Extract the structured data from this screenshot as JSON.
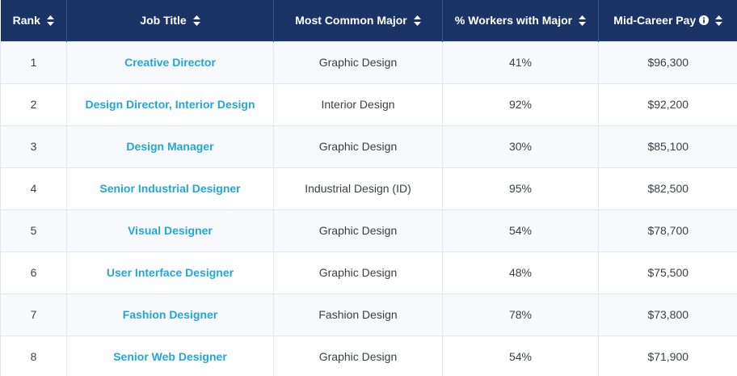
{
  "table": {
    "headers": {
      "rank": "Rank",
      "job_title": "Job Title",
      "major": "Most Common Major",
      "pct": "% Workers with Major",
      "pay": "Mid-Career Pay"
    },
    "icons": {
      "sort": "sort-icon",
      "info": "info-icon"
    },
    "colors": {
      "header_bg": "#1b3466",
      "link": "#23a6d5",
      "text": "#3a3f47"
    },
    "rows": [
      {
        "rank": "1",
        "title": "Creative Director",
        "major": "Graphic Design",
        "pct": "41%",
        "pay": "$96,300"
      },
      {
        "rank": "2",
        "title": "Design Director, Interior Design",
        "major": "Interior Design",
        "pct": "92%",
        "pay": "$92,200"
      },
      {
        "rank": "3",
        "title": "Design Manager",
        "major": "Graphic Design",
        "pct": "30%",
        "pay": "$85,100"
      },
      {
        "rank": "4",
        "title": "Senior Industrial Designer",
        "major": "Industrial Design (ID)",
        "pct": "95%",
        "pay": "$82,500"
      },
      {
        "rank": "5",
        "title": "Visual Designer",
        "major": "Graphic Design",
        "pct": "54%",
        "pay": "$78,700"
      },
      {
        "rank": "6",
        "title": "User Interface Designer",
        "major": "Graphic Design",
        "pct": "48%",
        "pay": "$75,500"
      },
      {
        "rank": "7",
        "title": "Fashion Designer",
        "major": "Fashion Design",
        "pct": "78%",
        "pay": "$73,800"
      },
      {
        "rank": "8",
        "title": "Senior Web Designer",
        "major": "Graphic Design",
        "pct": "54%",
        "pay": "$71,900"
      }
    ]
  }
}
